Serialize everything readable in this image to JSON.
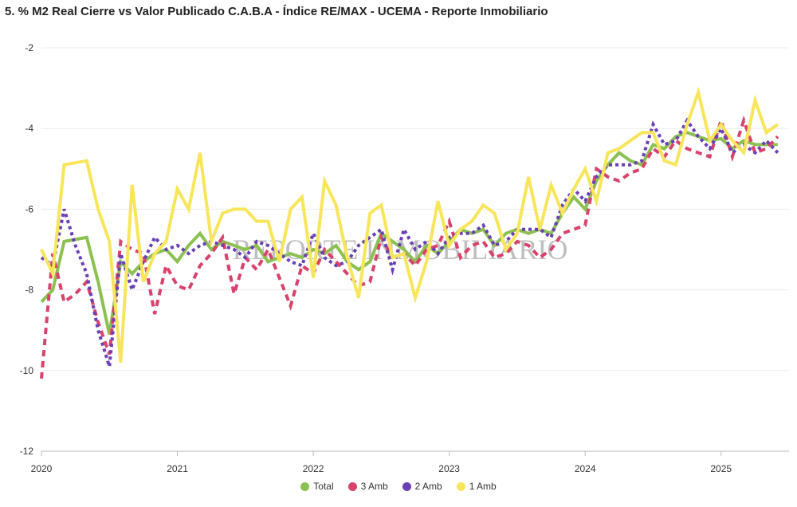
{
  "chart_data": {
    "type": "line",
    "title": "5. % M2 Real Cierre vs Valor Publicado C.A.B.A - Índice RE/MAX - UCEMA - Reporte Inmobiliario",
    "watermark": "REPORTE INMOBILIARIO",
    "xlabel": "",
    "ylabel": "",
    "xlim": [
      2020.0,
      2025.5
    ],
    "ylim": [
      -12,
      -2
    ],
    "y_ticks": [
      -2,
      -4,
      -6,
      -8,
      -10,
      -12
    ],
    "x_ticks": [
      "2020",
      "2021",
      "2022",
      "2023",
      "2024",
      "2025"
    ],
    "grid": true,
    "legend_position": "bottom",
    "x": [
      2020.0,
      2020.083,
      2020.167,
      2020.25,
      2020.333,
      2020.417,
      2020.5,
      2020.583,
      2020.667,
      2020.75,
      2020.833,
      2020.917,
      2021.0,
      2021.083,
      2021.167,
      2021.25,
      2021.333,
      2021.417,
      2021.5,
      2021.583,
      2021.667,
      2021.75,
      2021.833,
      2021.917,
      2022.0,
      2022.083,
      2022.167,
      2022.25,
      2022.333,
      2022.417,
      2022.5,
      2022.583,
      2022.667,
      2022.75,
      2022.833,
      2022.917,
      2023.0,
      2023.083,
      2023.167,
      2023.25,
      2023.333,
      2023.417,
      2023.5,
      2023.583,
      2023.667,
      2023.75,
      2023.833,
      2023.917,
      2024.0,
      2024.083,
      2024.167,
      2024.25,
      2024.333,
      2024.417,
      2024.5,
      2024.583,
      2024.667,
      2024.75,
      2024.833,
      2024.917,
      2025.0,
      2025.083,
      2025.167,
      2025.25,
      2025.333,
      2025.417
    ],
    "series": [
      {
        "name": "Total",
        "color": "#8cc152",
        "style": "solid",
        "values": [
          -8.3,
          -8.0,
          -6.8,
          -6.75,
          -6.7,
          -7.8,
          -9.1,
          -7.3,
          -7.6,
          -7.3,
          -7.1,
          -7.0,
          -7.3,
          -6.9,
          -6.6,
          -7.0,
          -6.8,
          -6.9,
          -7.0,
          -6.9,
          -7.3,
          -7.2,
          -7.1,
          -7.2,
          -7.0,
          -7.1,
          -6.9,
          -7.3,
          -7.5,
          -7.3,
          -6.6,
          -6.8,
          -7.0,
          -7.3,
          -6.9,
          -7.1,
          -6.8,
          -6.5,
          -6.6,
          -6.5,
          -6.9,
          -6.6,
          -6.5,
          -6.6,
          -6.5,
          -6.6,
          -6.1,
          -5.7,
          -6.0,
          -5.3,
          -4.9,
          -4.6,
          -4.8,
          -4.9,
          -4.4,
          -4.5,
          -4.2,
          -4.1,
          -4.2,
          -4.3,
          -4.25,
          -4.5,
          -4.3,
          -4.4,
          -4.4,
          -4.4
        ]
      },
      {
        "name": "3 Amb",
        "color": "#d9426b",
        "style": "dashed",
        "values": [
          -10.2,
          -7.1,
          -8.3,
          -8.1,
          -7.8,
          -8.8,
          -9.6,
          -6.8,
          -7.0,
          -7.1,
          -8.6,
          -7.4,
          -7.9,
          -8.0,
          -7.4,
          -7.1,
          -6.7,
          -8.1,
          -7.2,
          -7.5,
          -7.0,
          -7.7,
          -8.4,
          -7.4,
          -7.6,
          -7.0,
          -7.3,
          -7.6,
          -7.9,
          -7.8,
          -6.7,
          -7.2,
          -7.1,
          -7.4,
          -7.0,
          -6.9,
          -6.3,
          -7.2,
          -6.9,
          -6.8,
          -7.2,
          -7.1,
          -6.8,
          -6.9,
          -7.2,
          -7.0,
          -6.6,
          -6.5,
          -6.4,
          -5.0,
          -5.2,
          -5.3,
          -5.1,
          -5.0,
          -4.5,
          -4.7,
          -4.3,
          -4.5,
          -4.6,
          -4.7,
          -3.8,
          -4.7,
          -3.8,
          -4.6,
          -4.5,
          -4.2
        ]
      },
      {
        "name": "2 Amb",
        "color": "#6a3fb5",
        "style": "dotted",
        "values": [
          -7.2,
          -7.4,
          -6.0,
          -6.9,
          -7.6,
          -9.0,
          -9.9,
          -7.1,
          -8.0,
          -7.3,
          -6.7,
          -7.0,
          -6.9,
          -7.1,
          -6.9,
          -6.8,
          -6.9,
          -7.0,
          -7.2,
          -6.8,
          -6.9,
          -7.1,
          -7.3,
          -7.4,
          -6.6,
          -7.2,
          -7.4,
          -7.3,
          -6.9,
          -6.7,
          -6.5,
          -7.5,
          -6.5,
          -7.0,
          -6.8,
          -7.1,
          -6.7,
          -6.6,
          -6.6,
          -6.4,
          -6.9,
          -6.8,
          -6.5,
          -6.5,
          -6.5,
          -6.7,
          -5.9,
          -5.5,
          -5.8,
          -5.2,
          -4.9,
          -4.9,
          -4.9,
          -4.8,
          -3.9,
          -4.4,
          -4.3,
          -3.8,
          -4.2,
          -4.5,
          -4.0,
          -4.6,
          -4.4,
          -4.6,
          -4.3,
          -4.6
        ]
      },
      {
        "name": "1 Amb",
        "color": "#f7e65c",
        "style": "solid",
        "values": [
          -7.0,
          -7.6,
          -4.9,
          -4.85,
          -4.8,
          -6.0,
          -6.8,
          -9.8,
          -5.4,
          -7.8,
          -7.1,
          -6.8,
          -5.5,
          -6.0,
          -4.6,
          -6.8,
          -6.1,
          -6.0,
          -6.0,
          -6.3,
          -6.3,
          -7.3,
          -6.0,
          -5.7,
          -7.7,
          -5.3,
          -5.9,
          -7.2,
          -8.2,
          -6.1,
          -5.9,
          -7.2,
          -7.1,
          -8.2,
          -7.3,
          -5.8,
          -6.9,
          -6.5,
          -6.3,
          -5.9,
          -6.1,
          -7.0,
          -6.6,
          -5.2,
          -6.5,
          -5.4,
          -6.1,
          -5.5,
          -5.0,
          -5.8,
          -4.6,
          -4.5,
          -4.3,
          -4.1,
          -4.1,
          -4.8,
          -4.9,
          -3.9,
          -3.1,
          -4.3,
          -3.9,
          -4.3,
          -4.6,
          -3.3,
          -4.1,
          -3.9
        ]
      }
    ]
  }
}
